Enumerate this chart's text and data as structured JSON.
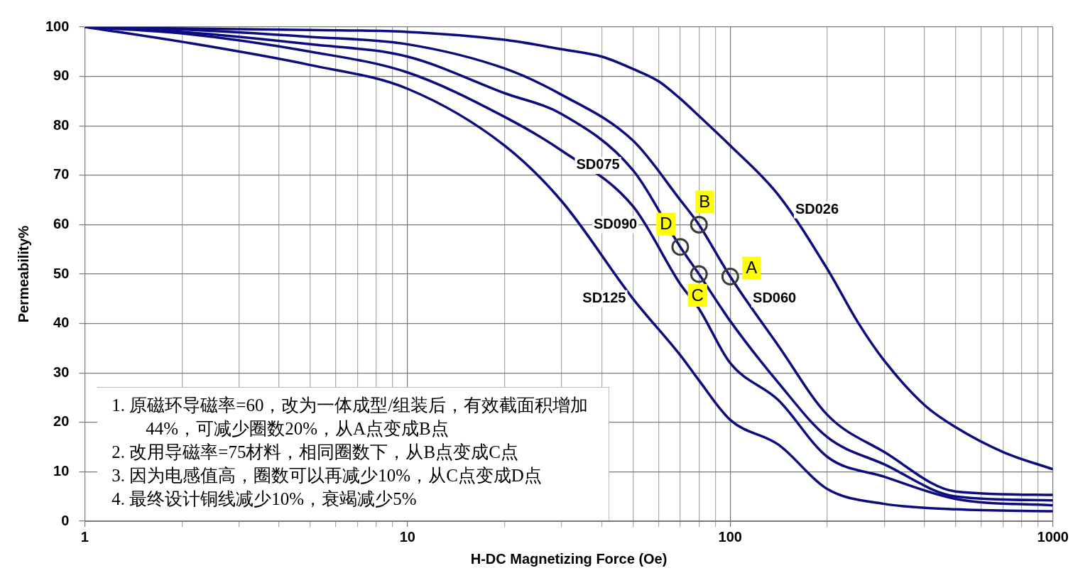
{
  "chart_data": {
    "type": "line",
    "xlabel": "H-DC Magnetizing Force (Oe)",
    "ylabel": "Permeability%",
    "log": "x",
    "grid": true,
    "legend": false,
    "marker": "none",
    "line_style": "solid",
    "xlim": [
      1,
      1000
    ],
    "ylim": [
      0,
      100
    ],
    "xticks": [
      1,
      {
        "value": 2,
        "label": null
      },
      {
        "value": 3,
        "label": null
      },
      {
        "value": 4,
        "label": null
      },
      {
        "value": 5,
        "label": null
      },
      {
        "value": 6,
        "label": null
      },
      {
        "value": 7,
        "label": null
      },
      {
        "value": 8,
        "label": null
      },
      {
        "value": 9,
        "label": null
      },
      10,
      {
        "value": 20,
        "label": null
      },
      {
        "value": 30,
        "label": null
      },
      {
        "value": 40,
        "label": null
      },
      {
        "value": 50,
        "label": null
      },
      {
        "value": 60,
        "label": null
      },
      {
        "value": 70,
        "label": null
      },
      {
        "value": 80,
        "label": null
      },
      {
        "value": 90,
        "label": null
      },
      100,
      {
        "value": 200,
        "label": null
      },
      {
        "value": 300,
        "label": null
      },
      {
        "value": 400,
        "label": null
      },
      {
        "value": 500,
        "label": null
      },
      {
        "value": 600,
        "label": null
      },
      {
        "value": 700,
        "label": null
      },
      {
        "value": 800,
        "label": null
      },
      {
        "value": 900,
        "label": null
      },
      1000
    ],
    "yticks": [
      0,
      10,
      20,
      30,
      40,
      50,
      60,
      70,
      80,
      90,
      100
    ],
    "x": [
      1,
      2,
      5,
      10,
      20,
      30,
      50,
      70,
      80,
      100,
      141,
      200,
      300,
      500,
      1000
    ],
    "series": [
      {
        "name": "SD026",
        "color": "#0c0c7e",
        "x": [
          1,
          2,
          5,
          10,
          20,
          30,
          40,
          50,
          60,
          70,
          80,
          100,
          141,
          200,
          250,
          300,
          400,
          500,
          700,
          1000
        ],
        "values": [
          100,
          99.7,
          99.4,
          99,
          97.4,
          95.5,
          94,
          91.5,
          89,
          85.5,
          82,
          76,
          66,
          51,
          40,
          32.5,
          23.5,
          19,
          14,
          10.5
        ]
      },
      {
        "name": "SD060",
        "color": "#0c0c7e",
        "values": [
          100,
          99.5,
          98,
          96.5,
          91.6,
          86.3,
          77,
          65,
          60,
          49.5,
          35.5,
          21.5,
          14,
          6,
          5.3
        ]
      },
      {
        "name": "SD075",
        "color": "#0c0c7e",
        "values": [
          100,
          99,
          96.5,
          94,
          86.6,
          82.4,
          71,
          55.5,
          50,
          40.5,
          28,
          17,
          11.5,
          5,
          4.2
        ]
      },
      {
        "name": "SD090",
        "color": "#0c0c7e",
        "values": [
          100,
          98.7,
          95,
          90.8,
          81.8,
          75,
          63.7,
          48,
          43,
          32,
          24.5,
          13,
          9,
          4.5,
          3.2
        ]
      },
      {
        "name": "SD125",
        "color": "#0c0c7e",
        "values": [
          100,
          97,
          92.3,
          87.5,
          76,
          64.8,
          45,
          33.6,
          28.5,
          20.5,
          15.5,
          6.5,
          3.5,
          2.4,
          2
        ]
      }
    ],
    "annotations": [
      {
        "text": "A",
        "x": 100,
        "y": 49.5
      },
      {
        "text": "B",
        "x": 80,
        "y": 60
      },
      {
        "text": "C",
        "x": 80,
        "y": 50
      },
      {
        "text": "D",
        "x": 70,
        "y": 55.5
      },
      "1. 原磁环导磁率=60，改为一体成型/组装后，有效截面积增加44%，可减少圈数20%，从A点变成B点",
      "2. 改用导磁率=75材料，相同圈数下，从B点变成C点",
      "3. 因为电感值高，圈数可以再减少10%，从C点变成D点",
      "4. 最终设计铜线减少10%，衰竭减少5%"
    ]
  }
}
